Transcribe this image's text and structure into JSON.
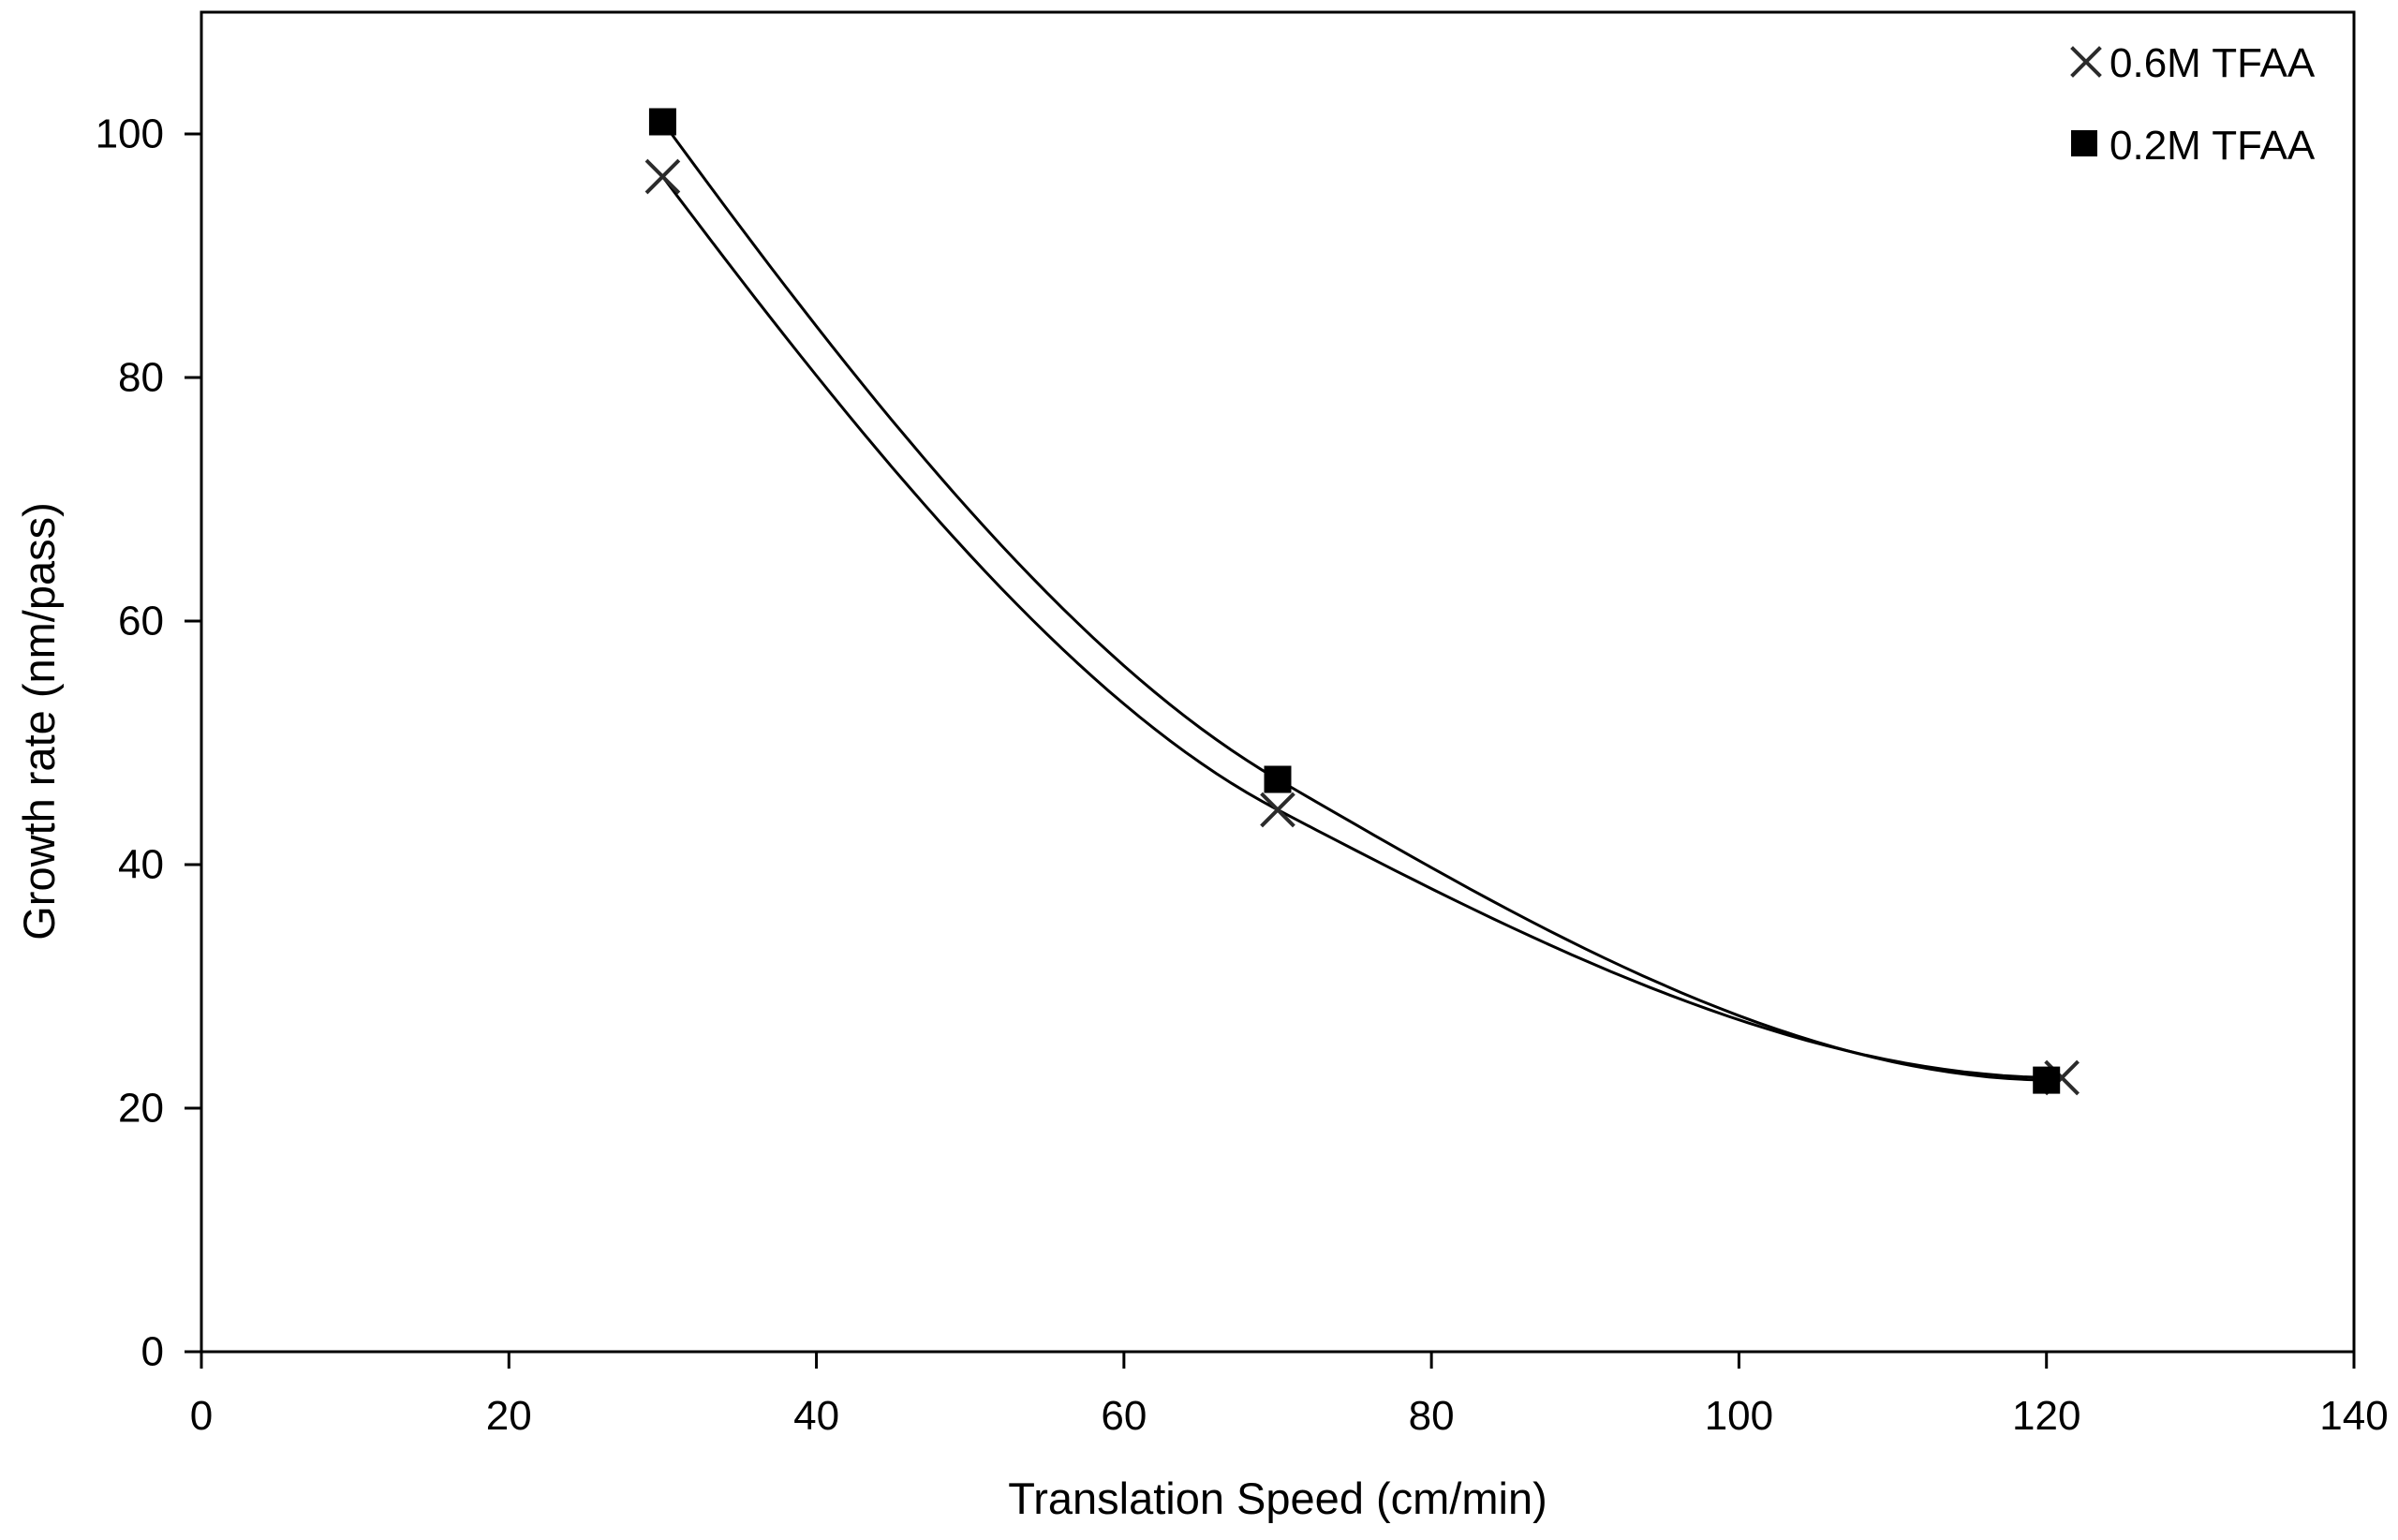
{
  "chart_data": {
    "type": "scatter",
    "title": "",
    "xlabel": "Translation Speed (cm/min)",
    "ylabel": "Growth rate (nm/pass)",
    "xlim": [
      0,
      140
    ],
    "ylim": [
      0,
      110
    ],
    "x_ticks": [
      0,
      20,
      40,
      60,
      80,
      100,
      120,
      140
    ],
    "y_ticks": [
      0,
      20,
      40,
      60,
      80,
      100
    ],
    "grid": false,
    "legend_position": "top-right-inside",
    "plot_border": true,
    "background_color": "#ffffff",
    "axis_color": "#000000",
    "series": [
      {
        "name": "0.6M TFAA",
        "marker": "x",
        "marker_color": "#2b2b2b",
        "line_color": "#000000",
        "trendline": "smooth",
        "x": [
          30,
          70,
          121
        ],
        "y": [
          96.5,
          44.5,
          22.5
        ]
      },
      {
        "name": "0.2M TFAA",
        "marker": "square",
        "marker_color": "#000000",
        "line_color": "#000000",
        "trendline": "smooth",
        "x": [
          30,
          70,
          120
        ],
        "y": [
          101,
          47,
          22.3
        ]
      }
    ]
  }
}
